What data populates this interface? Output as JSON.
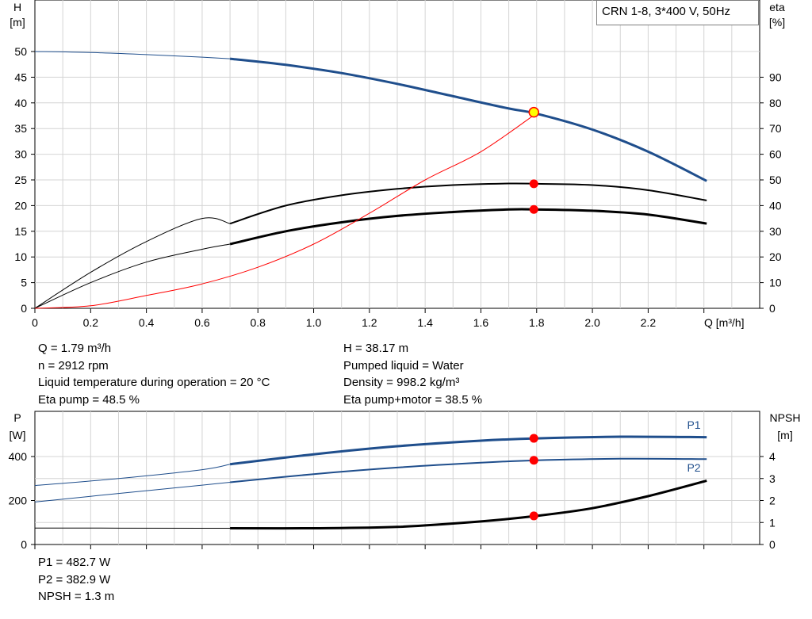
{
  "legend_box": "CRN 1-8, 3*400 V, 50Hz",
  "operating_point": {
    "left_lines": [
      "Q = 1.79 m³/h",
      "n = 2912 rpm",
      "Liquid temperature during operation = 20 °C",
      "Eta pump = 48.5 %"
    ],
    "right_lines": [
      "H = 38.17 m",
      "Pumped liquid = Water",
      "Density = 998.2 kg/m³",
      "Eta pump+motor = 38.5 %"
    ],
    "power_lines": [
      "P1 = 482.7 W",
      "P2 = 382.9 W",
      "NPSH = 1.3 m"
    ]
  },
  "colors": {
    "head": "#1f4e8c",
    "power": "#1f4e8c",
    "eta": "#000000",
    "eta_curve_red": "#ff0000",
    "marker": "#ff0000",
    "marker_yellow": "#ffff00",
    "grid": "#d4d4d4"
  },
  "chart_data": [
    {
      "type": "line",
      "xlabel": "Q [m³/h]",
      "y_left_label": [
        "H",
        "[m]"
      ],
      "y_right_label": [
        "eta",
        "[%]"
      ],
      "xlim": [
        0,
        2.6
      ],
      "ylim_left": [
        0,
        50
      ],
      "ylim_right": [
        0,
        100
      ],
      "x_ticks": [
        "0",
        "0.2",
        "0.4",
        "0.6",
        "0.8",
        "1.0",
        "1.2",
        "1.4",
        "1.6",
        "1.8",
        "2.0",
        "2.2"
      ],
      "y_left_ticks": [
        "0",
        "5",
        "10",
        "15",
        "20",
        "25",
        "30",
        "35",
        "40",
        "45",
        "50"
      ],
      "y_right_ticks": [
        "0",
        "10",
        "20",
        "30",
        "40",
        "50",
        "60",
        "70",
        "80",
        "90"
      ],
      "grid": true,
      "series": [
        {
          "axis": "left",
          "x": [
            0,
            0.2,
            0.4,
            0.6,
            0.7,
            0.9,
            1.1,
            1.3,
            1.5,
            1.7,
            1.8,
            2.0,
            2.2,
            2.41
          ],
          "y": [
            50,
            49.8,
            49.4,
            48.9,
            48.6,
            47.4,
            45.8,
            43.7,
            41.3,
            38.9,
            37.9,
            34.8,
            30.5,
            24.8
          ]
        },
        {
          "axis": "right",
          "x": [
            0,
            0.2,
            0.4,
            0.6,
            0.7,
            0.9,
            1.1,
            1.3,
            1.5,
            1.7,
            1.8,
            2.0,
            2.2,
            2.41
          ],
          "y": [
            0,
            14,
            26,
            35,
            33,
            40,
            44,
            46.5,
            48,
            48.6,
            48.5,
            48,
            46,
            42
          ]
        },
        {
          "axis": "right",
          "x": [
            0,
            0.2,
            0.4,
            0.6,
            0.7,
            0.9,
            1.1,
            1.3,
            1.5,
            1.7,
            1.8,
            2.0,
            2.2,
            2.41
          ],
          "y": [
            0,
            10,
            18,
            23,
            25,
            30,
            33.5,
            36,
            37.5,
            38.5,
            38.5,
            38,
            36.5,
            33
          ]
        },
        {
          "axis": "right",
          "x": [
            0,
            0.2,
            0.4,
            0.6,
            0.8,
            1.0,
            1.2,
            1.4,
            1.6,
            1.8
          ],
          "y": [
            0,
            1,
            5,
            9.5,
            16,
            25,
            37,
            50,
            61,
            76
          ]
        }
      ],
      "markers": [
        {
          "x": 1.79,
          "y": 38.17,
          "axis": "left"
        },
        {
          "x": 1.79,
          "y": 48.5,
          "axis": "right"
        },
        {
          "x": 1.79,
          "y": 38.5,
          "axis": "right"
        }
      ]
    },
    {
      "type": "line",
      "y_left_label": [
        "P",
        "[W]"
      ],
      "y_right_label": [
        "NPSH",
        "[m]"
      ],
      "xlim": [
        0,
        2.6
      ],
      "ylim_left": [
        0,
        450
      ],
      "ylim_right": [
        0,
        5
      ],
      "y_left_ticks": [
        "0",
        "200",
        "400"
      ],
      "y_right_ticks": [
        "0",
        "1",
        "2",
        "3",
        "4"
      ],
      "grid": true,
      "series": [
        {
          "name": "P1",
          "axis": "left",
          "x": [
            0,
            0.3,
            0.6,
            0.7,
            1.0,
            1.3,
            1.6,
            1.8,
            2.1,
            2.41
          ],
          "y": [
            268,
            300,
            340,
            365,
            410,
            447,
            472,
            482.7,
            490,
            488
          ]
        },
        {
          "name": "P2",
          "axis": "left",
          "x": [
            0,
            0.3,
            0.6,
            0.7,
            1.0,
            1.3,
            1.6,
            1.8,
            2.1,
            2.41
          ],
          "y": [
            193,
            232,
            270,
            283,
            320,
            350,
            372,
            382.9,
            390,
            388
          ]
        },
        {
          "axis": "right",
          "x": [
            0,
            0.6,
            0.7,
            1.0,
            1.3,
            1.6,
            1.8,
            2.0,
            2.2,
            2.41
          ],
          "y": [
            0.75,
            0.74,
            0.74,
            0.74,
            0.8,
            1.05,
            1.3,
            1.65,
            2.2,
            2.9
          ]
        }
      ],
      "markers": [
        {
          "x": 1.79,
          "y": 482.7,
          "axis": "left"
        },
        {
          "x": 1.79,
          "y": 382.9,
          "axis": "left"
        },
        {
          "x": 1.79,
          "y": 1.3,
          "axis": "right"
        }
      ]
    }
  ]
}
